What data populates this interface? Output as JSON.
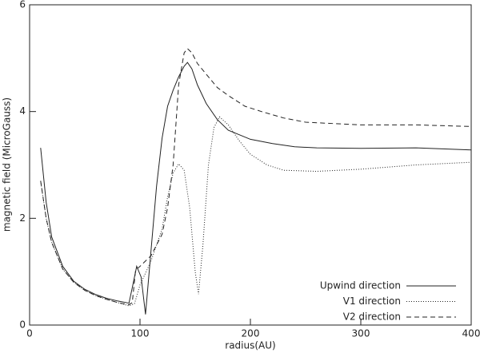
{
  "chart_data": {
    "type": "line",
    "xlabel": "radius(AU)",
    "ylabel": "magnetic field (MicroGauss)",
    "xlim": [
      0,
      400
    ],
    "xticks": [
      0,
      100,
      200,
      300,
      400
    ],
    "ylim": [
      0,
      6
    ],
    "yticks": [
      0,
      2,
      4,
      6
    ],
    "legend": "lower right",
    "series": [
      {
        "name": "Upwind direction",
        "color": "#222222",
        "dash": "none",
        "x": [
          10,
          15,
          20,
          30,
          40,
          50,
          60,
          70,
          80,
          90,
          93,
          97,
          101,
          105,
          110,
          115,
          120,
          125,
          130,
          135,
          140,
          143,
          147,
          152,
          160,
          170,
          180,
          200,
          220,
          240,
          260,
          300,
          350,
          400
        ],
        "values": [
          3.32,
          2.3,
          1.65,
          1.1,
          0.82,
          0.67,
          0.57,
          0.5,
          0.45,
          0.41,
          0.7,
          1.1,
          0.9,
          0.2,
          1.4,
          2.6,
          3.5,
          4.1,
          4.4,
          4.65,
          4.85,
          4.92,
          4.8,
          4.5,
          4.15,
          3.85,
          3.65,
          3.48,
          3.4,
          3.34,
          3.32,
          3.31,
          3.32,
          3.28
        ]
      },
      {
        "name": "V1 direction",
        "color": "#222222",
        "dash": "1,2",
        "x": [
          10,
          15,
          20,
          30,
          40,
          50,
          60,
          70,
          80,
          90,
          95,
          100,
          110,
          120,
          125,
          130,
          135,
          140,
          145,
          150,
          153,
          157,
          162,
          167,
          172,
          180,
          190,
          200,
          215,
          230,
          260,
          300,
          350,
          400
        ],
        "values": [
          2.7,
          2.0,
          1.55,
          1.05,
          0.8,
          0.65,
          0.55,
          0.48,
          0.42,
          0.36,
          0.4,
          0.75,
          1.2,
          1.8,
          2.4,
          2.85,
          3.02,
          2.9,
          2.2,
          1.0,
          0.58,
          1.5,
          3.0,
          3.7,
          3.9,
          3.75,
          3.45,
          3.2,
          3.0,
          2.9,
          2.88,
          2.92,
          3.0,
          3.05
        ]
      },
      {
        "name": "V2 direction",
        "color": "#222222",
        "dash": "6,4",
        "x": [
          10,
          15,
          20,
          30,
          40,
          50,
          60,
          70,
          80,
          90,
          93,
          96,
          100,
          110,
          120,
          125,
          130,
          135,
          140,
          143,
          147,
          152,
          160,
          170,
          180,
          195,
          210,
          230,
          250,
          300,
          350,
          400
        ],
        "values": [
          2.7,
          2.0,
          1.55,
          1.05,
          0.8,
          0.65,
          0.55,
          0.48,
          0.42,
          0.38,
          0.42,
          1.03,
          1.1,
          1.3,
          1.7,
          2.2,
          3.0,
          4.5,
          5.1,
          5.18,
          5.1,
          4.9,
          4.7,
          4.45,
          4.3,
          4.1,
          4.0,
          3.88,
          3.8,
          3.75,
          3.75,
          3.72
        ]
      }
    ]
  }
}
